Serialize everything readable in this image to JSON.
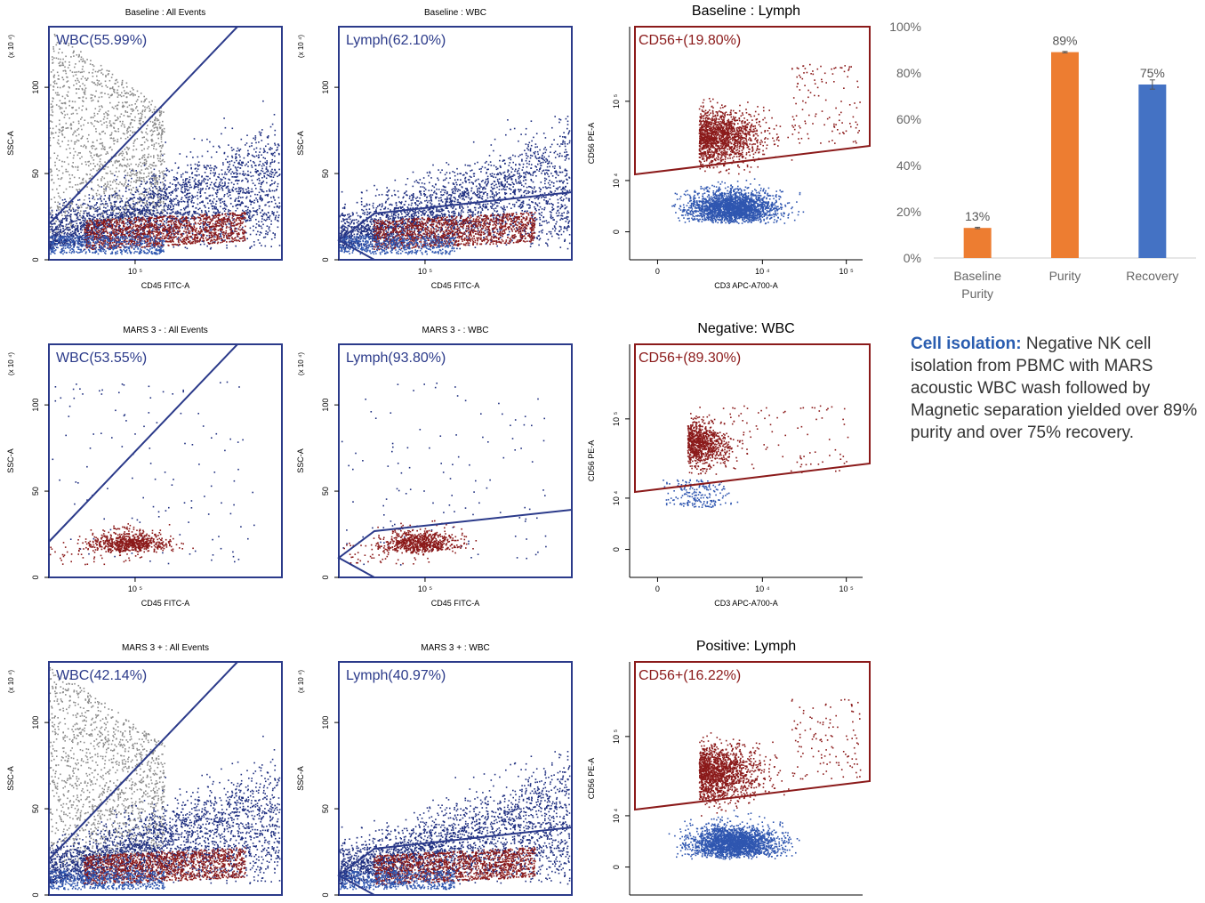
{
  "colors": {
    "gray_events": "#8a8a8a",
    "wbc_blue": "#1f2f80",
    "lymph_blue": "#2f56b0",
    "nk_red": "#8b1a1a",
    "gate_blue": "#2b3a8a",
    "gate_red": "#8b1a1a",
    "bar_orange": "#ed7d31",
    "bar_blue": "#4472c4"
  },
  "flow_plots": [
    {
      "title": "Baseline : All Events",
      "xlabel": "CD45 FITC-A",
      "ylabel": "SSC-A",
      "yexp": "(x 10 ⁴)",
      "gate_label": "WBC(55.99%)",
      "xtick": "10 ⁵",
      "yticks": [
        "0",
        "50",
        "100"
      ],
      "scatter": "scatter_all",
      "gate": "wbc"
    },
    {
      "title": "Baseline : WBC",
      "xlabel": "CD45 FITC-A",
      "ylabel": "SSC-A",
      "yexp": "(x 10 ⁴)",
      "gate_label": "Lymph(62.10%)",
      "xtick": "10 ⁵",
      "yticks": [
        "0",
        "50",
        "100"
      ],
      "scatter": "scatter_wbc",
      "gate": "lymph"
    },
    {
      "title": "Baseline : Lymph",
      "xlabel": "CD3 APC-A700-A",
      "ylabel": "CD56 PE-A",
      "gate_label": "CD56+(19.80%)",
      "xticks": [
        "0",
        "10 ⁴",
        "10 ⁵"
      ],
      "yticks": [
        "0",
        "10 ⁴",
        "10 ⁵"
      ],
      "scatter": "scatter_nk",
      "gate": "cd56"
    },
    {
      "title": "MARS 3 - : All Events",
      "xlabel": "CD45 FITC-A",
      "ylabel": "SSC-A",
      "yexp": "(x 10 ⁴)",
      "gate_label": "WBC(53.55%)",
      "xtick": "10 ⁵",
      "yticks": [
        "0",
        "50",
        "100"
      ],
      "scatter": "scatter_sparse",
      "gate": "wbc"
    },
    {
      "title": "MARS 3 - : WBC",
      "xlabel": "CD45 FITC-A",
      "ylabel": "SSC-A",
      "yexp": "(x 10 ⁴)",
      "gate_label": "Lymph(93.80%)",
      "xtick": "10 ⁵",
      "yticks": [
        "0",
        "50",
        "100"
      ],
      "scatter": "scatter_sparse",
      "gate": "lymph"
    },
    {
      "title": "Negative: WBC",
      "xlabel": "CD3 APC-A700-A",
      "ylabel": "CD56 PE-A",
      "gate_label": "CD56+(89.30%)",
      "xticks": [
        "0",
        "10 ⁴",
        "10 ⁵"
      ],
      "yticks": [
        "0",
        "10 ⁴",
        "10 ⁵"
      ],
      "scatter": "scatter_nk_neg",
      "gate": "cd56"
    },
    {
      "title": "MARS 3 + : All Events",
      "xlabel": "",
      "ylabel": "SSC-A",
      "yexp": "(x 10 ⁴)",
      "gate_label": "WBC(42.14%)",
      "xtick": "",
      "yticks": [
        "0",
        "50",
        "100"
      ],
      "scatter": "scatter_all",
      "gate": "wbc"
    },
    {
      "title": "MARS 3 + : WBC",
      "xlabel": "",
      "ylabel": "SSC-A",
      "yexp": "(x 10 ⁴)",
      "gate_label": "Lymph(40.97%)",
      "xtick": "",
      "yticks": [
        "0",
        "50",
        "100"
      ],
      "scatter": "scatter_wbc",
      "gate": "lymph"
    },
    {
      "title": "Positive: Lymph",
      "xlabel": "",
      "ylabel": "CD56 PE-A",
      "gate_label": "CD56+(16.22%)",
      "xticks": [],
      "yticks": [
        "0",
        "10 ⁴",
        "10 ⁵"
      ],
      "scatter": "scatter_nk",
      "gate": "cd56"
    }
  ],
  "chart_data": {
    "type": "bar",
    "categories": [
      "Baseline Purity",
      "Purity",
      "Recovery"
    ],
    "values": [
      13,
      89,
      75
    ],
    "value_labels": [
      "13%",
      "89%",
      "75%"
    ],
    "bar_colors": [
      "#ed7d31",
      "#ed7d31",
      "#4472c4"
    ],
    "error_bars": [
      0.3,
      0.3,
      2
    ],
    "ylim": [
      0,
      100
    ],
    "yticks": [
      "0%",
      "20%",
      "40%",
      "60%",
      "80%",
      "100%"
    ],
    "grid": false,
    "title": "",
    "xlabel": "",
    "ylabel": ""
  },
  "caption": {
    "lead": "Cell isolation:",
    "body": " Negative NK cell isolation from PBMC with MARS acoustic WBC wash followed by Magnetic separation yielded over 89% purity and over 75% recovery."
  }
}
